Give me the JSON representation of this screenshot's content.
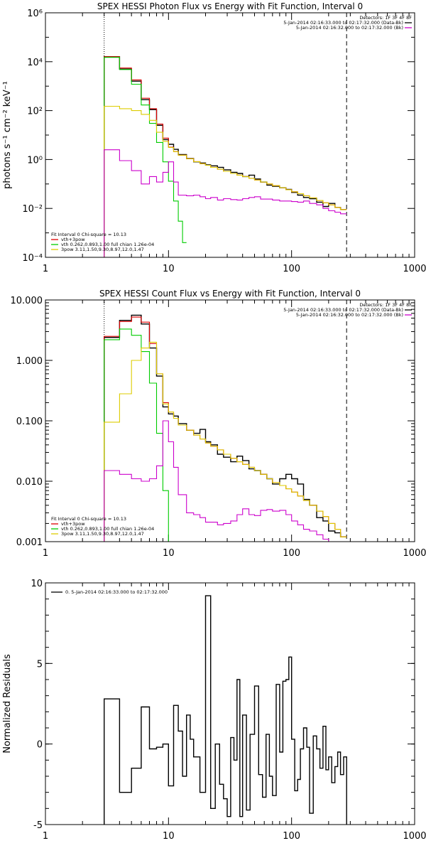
{
  "chart_data": [
    {
      "type": "line",
      "title": "SPEX HESSI Photon Flux vs Energy with Fit Function, Interval 0",
      "xlabel": "",
      "ylabel": "photons s⁻¹ cm⁻² keV⁻¹",
      "xscale": "log",
      "yscale": "log",
      "xlim": [
        1,
        1000
      ],
      "ylim": [
        0.0001,
        1000000
      ],
      "xticks": [
        1,
        10,
        100,
        1000
      ],
      "xtick_labels": [
        "1",
        "10",
        "100",
        "1000"
      ],
      "yticks": [
        0.0001,
        0.01,
        1,
        100,
        10000,
        1000000
      ],
      "ytick_labels": [
        "10⁻⁴",
        "10⁻²",
        "10⁰",
        "10²",
        "10⁴",
        "10⁶"
      ],
      "vlines": [
        {
          "x": 3,
          "style": "dotted"
        },
        {
          "x": 280,
          "style": "dashed"
        }
      ],
      "legend_right": {
        "header": "Detectors: 1F 3F 4F 8F",
        "entries": [
          {
            "label": "5-Jan-2014 02:16:33.000 to 02:17:32.000 (Data-Bk)",
            "color": "#000000"
          },
          {
            "label": "5-Jan-2014 02:16:32.000 to 02:17:32.000 (Bk)",
            "color": "#cc00cc"
          }
        ]
      },
      "legend_left": {
        "header": "Fit Interval 0   Chi-square = 10.13",
        "entries": [
          {
            "label": "vth+3pow",
            "color": "#dd0000"
          },
          {
            "label": "vth 0.262,0.893,1.00  full chian 1.26e-04",
            "color": "#00cc00"
          },
          {
            "label": "3pow 3.11,1.50,9.30,8.97,12.0,1.47",
            "color": "#ddcc00"
          }
        ]
      },
      "series": [
        {
          "name": "Data-Bk",
          "color": "#000000",
          "edges": [
            3,
            4,
            5,
            6,
            7,
            8,
            9,
            10,
            11,
            12,
            14,
            16,
            18,
            20,
            22,
            25,
            28,
            32,
            36,
            40,
            45,
            50,
            56,
            63,
            70,
            80,
            90,
            100,
            112,
            125,
            140,
            160,
            180,
            200,
            225,
            250,
            280
          ],
          "values": [
            16000,
            5000,
            1600,
            280,
            110,
            25,
            6.5,
            4.2,
            2.6,
            1.6,
            1.1,
            0.8,
            0.72,
            0.6,
            0.55,
            0.48,
            0.38,
            0.3,
            0.27,
            0.2,
            0.23,
            0.16,
            0.12,
            0.09,
            0.08,
            0.07,
            0.06,
            0.045,
            0.035,
            0.028,
            0.025,
            0.018,
            0.012,
            0.016,
            0.011,
            0.009
          ]
        },
        {
          "name": "vth+3pow",
          "color": "#dd0000",
          "edges": [
            3,
            4,
            5,
            6,
            7,
            8,
            9,
            10,
            11,
            12,
            14,
            16,
            18,
            20,
            22,
            25,
            28,
            32,
            36,
            40,
            45,
            50,
            56,
            63,
            70,
            80,
            90,
            100,
            112,
            125,
            140,
            160,
            180,
            200,
            225,
            250,
            280
          ],
          "values": [
            16000,
            5500,
            1800,
            320,
            120,
            28,
            7.5,
            3.2,
            2.1,
            1.5,
            1.08,
            0.82,
            0.68,
            0.58,
            0.48,
            0.4,
            0.33,
            0.27,
            0.23,
            0.2,
            0.17,
            0.145,
            0.12,
            0.1,
            0.085,
            0.07,
            0.058,
            0.048,
            0.04,
            0.033,
            0.027,
            0.021,
            0.017,
            0.014,
            0.011,
            0.009
          ]
        },
        {
          "name": "vth",
          "color": "#00cc00",
          "edges": [
            3,
            4,
            5,
            6,
            7,
            8,
            9,
            10,
            11,
            12,
            13,
            14
          ],
          "values": [
            15000,
            4800,
            1200,
            170,
            30,
            5,
            0.8,
            0.13,
            0.02,
            0.003,
            0.0004
          ]
        },
        {
          "name": "3pow",
          "color": "#ddcc00",
          "edges": [
            3,
            4,
            5,
            6,
            7,
            8,
            9,
            10,
            11,
            12,
            14,
            16,
            18,
            20,
            22,
            25,
            28,
            32,
            36,
            40,
            45,
            50,
            56,
            63,
            70,
            80,
            90,
            100,
            112,
            125,
            140,
            160,
            180,
            200,
            225,
            250,
            280
          ],
          "values": [
            150,
            120,
            100,
            70,
            40,
            13,
            5.5,
            3.1,
            2.1,
            1.5,
            1.08,
            0.82,
            0.68,
            0.58,
            0.48,
            0.4,
            0.33,
            0.27,
            0.23,
            0.2,
            0.17,
            0.145,
            0.12,
            0.1,
            0.085,
            0.07,
            0.058,
            0.048,
            0.04,
            0.033,
            0.027,
            0.021,
            0.017,
            0.014,
            0.011,
            0.009
          ]
        },
        {
          "name": "Bk",
          "color": "#cc00cc",
          "edges": [
            3,
            4,
            5,
            6,
            7,
            8,
            9,
            10,
            11,
            12,
            14,
            16,
            18,
            20,
            22,
            25,
            28,
            32,
            36,
            40,
            45,
            50,
            56,
            63,
            70,
            80,
            90,
            100,
            112,
            125,
            140,
            160,
            180,
            200,
            225,
            250,
            280
          ],
          "values": [
            2.5,
            0.9,
            0.35,
            0.1,
            0.2,
            0.12,
            0.3,
            0.8,
            0.12,
            0.035,
            0.033,
            0.035,
            0.03,
            0.025,
            0.028,
            0.022,
            0.025,
            0.023,
            0.022,
            0.025,
            0.028,
            0.03,
            0.024,
            0.024,
            0.022,
            0.02,
            0.02,
            0.019,
            0.018,
            0.02,
            0.016,
            0.014,
            0.01,
            0.008,
            0.007,
            0.006
          ]
        }
      ]
    },
    {
      "type": "line",
      "title": "SPEX HESSI Count Flux vs Energy with Fit Function, Interval 0",
      "xlabel": "",
      "ylabel": "",
      "xscale": "log",
      "yscale": "log",
      "xlim": [
        1,
        1000
      ],
      "ylim": [
        0.001,
        10
      ],
      "xticks": [
        1,
        10,
        100,
        1000
      ],
      "xtick_labels": [
        "1",
        "10",
        "100",
        "1000"
      ],
      "yticks": [
        0.001,
        0.01,
        0.1,
        1,
        10
      ],
      "ytick_labels": [
        "0.001",
        "0.010",
        "0.100",
        "1.000",
        "10.000"
      ],
      "vlines": [
        {
          "x": 3,
          "style": "dotted"
        },
        {
          "x": 280,
          "style": "dashed"
        }
      ],
      "legend_right": {
        "header": "Detectors: 1F 3F 4F 8F",
        "entries": [
          {
            "label": "5-Jan-2014 02:16:33.000 to 02:17:32.000 (Data-Bk)",
            "color": "#000000"
          },
          {
            "label": "5-Jan-2014 02:16:32.000 to 02:17:32.000 (Bk)",
            "color": "#cc00cc"
          }
        ]
      },
      "legend_left": {
        "header": "Fit Interval 0   Chi-square = 10.13",
        "entries": [
          {
            "label": "vth+3pow",
            "color": "#dd0000"
          },
          {
            "label": "vth 0.262,0.893,1.00  full chian 1.26e-04",
            "color": "#00cc00"
          },
          {
            "label": "3pow 3.11,1.50,9.30,8.97,12.0,1.47",
            "color": "#ddcc00"
          }
        ]
      },
      "series": [
        {
          "name": "Data-Bk",
          "color": "#000000",
          "edges": [
            3,
            4,
            5,
            6,
            7,
            8,
            9,
            10,
            11,
            12,
            14,
            16,
            18,
            20,
            22,
            25,
            28,
            32,
            36,
            40,
            45,
            50,
            56,
            63,
            70,
            80,
            90,
            100,
            112,
            125,
            140,
            160,
            180,
            200,
            225,
            250,
            280
          ],
          "values": [
            2.4,
            4.6,
            5.6,
            4.0,
            1.6,
            0.55,
            0.17,
            0.13,
            0.12,
            0.09,
            0.07,
            0.062,
            0.072,
            0.045,
            0.04,
            0.028,
            0.025,
            0.021,
            0.026,
            0.022,
            0.016,
            0.015,
            0.013,
            0.011,
            0.009,
            0.011,
            0.013,
            0.011,
            0.009,
            0.005,
            0.004,
            0.0025,
            0.0022,
            0.0015,
            0.0014,
            0.0012
          ]
        },
        {
          "name": "vth+3pow",
          "color": "#dd0000",
          "edges": [
            3,
            4,
            5,
            6,
            7,
            8,
            9,
            10,
            11,
            12,
            14,
            16,
            18,
            20,
            22,
            25,
            28,
            32,
            36,
            40,
            45,
            50,
            56,
            63,
            70,
            80,
            90,
            100,
            112,
            125,
            140,
            160,
            180,
            200,
            225,
            250,
            280
          ],
          "values": [
            2.5,
            4.4,
            5.2,
            4.3,
            1.9,
            0.6,
            0.2,
            0.14,
            0.11,
            0.085,
            0.07,
            0.058,
            0.05,
            0.043,
            0.038,
            0.033,
            0.028,
            0.024,
            0.021,
            0.019,
            0.017,
            0.015,
            0.013,
            0.011,
            0.0095,
            0.0085,
            0.0075,
            0.0066,
            0.0057,
            0.0048,
            0.004,
            0.0032,
            0.0026,
            0.002,
            0.0016,
            0.0012
          ]
        },
        {
          "name": "vth",
          "color": "#00cc00",
          "edges": [
            3,
            4,
            5,
            6,
            7,
            8,
            9,
            10,
            11
          ],
          "values": [
            2.2,
            3.3,
            2.6,
            1.4,
            0.42,
            0.062,
            0.007,
            0.0009
          ]
        },
        {
          "name": "3pow",
          "color": "#ddcc00",
          "edges": [
            3,
            4,
            5,
            6,
            7,
            8,
            9,
            10,
            11,
            12,
            14,
            16,
            18,
            20,
            22,
            25,
            28,
            32,
            36,
            40,
            45,
            50,
            56,
            63,
            70,
            80,
            90,
            100,
            112,
            125,
            140,
            160,
            180,
            200,
            225,
            250,
            280
          ],
          "values": [
            0.095,
            0.28,
            1.0,
            1.6,
            2.0,
            0.6,
            0.19,
            0.14,
            0.11,
            0.085,
            0.07,
            0.058,
            0.05,
            0.043,
            0.038,
            0.033,
            0.028,
            0.024,
            0.021,
            0.019,
            0.017,
            0.015,
            0.013,
            0.011,
            0.0095,
            0.0085,
            0.0075,
            0.0066,
            0.0057,
            0.0048,
            0.004,
            0.0032,
            0.0026,
            0.002,
            0.0016,
            0.0012
          ]
        },
        {
          "name": "Bk",
          "color": "#cc00cc",
          "edges": [
            3,
            4,
            5,
            6,
            7,
            8,
            9,
            10,
            11,
            12,
            14,
            16,
            18,
            20,
            22,
            25,
            28,
            32,
            36,
            40,
            45,
            50,
            56,
            63,
            70,
            80,
            90,
            100,
            112,
            125,
            140,
            160,
            180,
            200,
            225,
            250,
            280
          ],
          "values": [
            0.015,
            0.013,
            0.011,
            0.01,
            0.011,
            0.018,
            0.1,
            0.045,
            0.017,
            0.006,
            0.003,
            0.0028,
            0.0025,
            0.0021,
            0.0021,
            0.0019,
            0.002,
            0.0022,
            0.0028,
            0.0035,
            0.0028,
            0.0027,
            0.0033,
            0.0034,
            0.0032,
            0.0033,
            0.0028,
            0.0022,
            0.0019,
            0.0016,
            0.0015,
            0.0013,
            0.0011,
            0.001,
            0.0009,
            0.0009
          ]
        }
      ]
    },
    {
      "type": "line",
      "title": "",
      "xlabel": "",
      "ylabel": "Normalized Residuals",
      "xscale": "log",
      "yscale": "linear",
      "xlim": [
        1,
        1000
      ],
      "ylim": [
        -5,
        10
      ],
      "xticks": [
        1,
        10,
        100,
        1000
      ],
      "xtick_labels": [
        "1",
        "10",
        "100",
        "1000"
      ],
      "yticks": [
        -5,
        0,
        5,
        10
      ],
      "ytick_labels": [
        "-5",
        "0",
        "5",
        "10"
      ],
      "legend_left": {
        "header": "",
        "entries": [
          {
            "label": "0. 5-Jan-2014 02:16:33.000 to 02:17:32.000",
            "color": "#000000"
          }
        ]
      },
      "series": [
        {
          "name": "0. 5-Jan-2014 02:16:33.000 to 02:17:32.000",
          "color": "#000000",
          "edges": [
            3,
            4,
            5,
            6,
            7,
            8,
            9,
            10,
            11,
            12,
            13,
            14,
            15,
            16,
            18,
            20,
            22,
            24,
            26,
            28,
            30,
            32,
            34,
            36,
            38,
            40,
            43,
            46,
            50,
            54,
            58,
            62,
            66,
            70,
            75,
            80,
            85,
            90,
            95,
            100,
            106,
            112,
            118,
            125,
            133,
            140,
            150,
            160,
            170,
            180,
            190,
            200,
            212,
            225,
            237,
            250,
            265,
            280
          ],
          "values": [
            2.8,
            -3.0,
            -1.5,
            2.3,
            -0.3,
            -0.2,
            0.0,
            -2.6,
            2.4,
            0.8,
            -2.0,
            1.8,
            0.3,
            -0.8,
            -3.0,
            9.2,
            -4.0,
            0.0,
            -2.5,
            -3.4,
            -4.5,
            0.4,
            -1.0,
            4.0,
            -4.5,
            1.8,
            -4.1,
            0.6,
            3.6,
            -1.9,
            -3.3,
            0.6,
            -2.0,
            -3.2,
            3.7,
            -0.5,
            3.9,
            4.0,
            5.4,
            0.3,
            -2.9,
            -2.2,
            -0.3,
            1.0,
            -0.2,
            -4.3,
            0.5,
            -0.3,
            -1.5,
            1.1,
            -1.6,
            -0.8,
            -2.4,
            -1.4,
            -0.5,
            -1.9,
            -0.8
          ]
        }
      ]
    }
  ]
}
